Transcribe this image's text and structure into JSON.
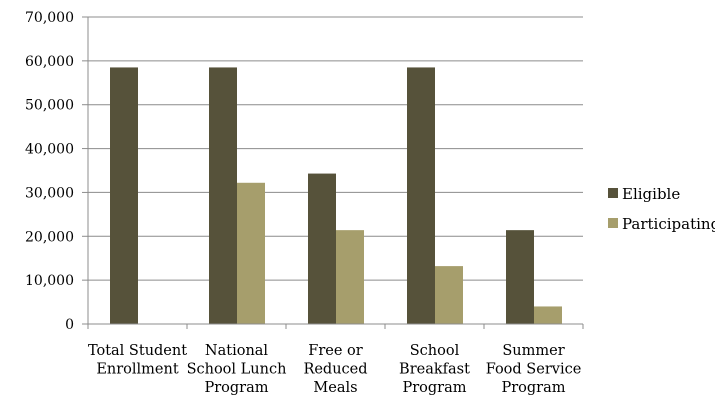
{
  "chart_data": {
    "type": "bar",
    "categories": [
      [
        "Total Student",
        "Enrollment"
      ],
      [
        "National",
        "School Lunch",
        "Program"
      ],
      [
        "Free or",
        "Reduced",
        "Meals"
      ],
      [
        "School",
        "Breakfast",
        "Program"
      ],
      [
        "Summer",
        "Food Service",
        "Program"
      ]
    ],
    "series": [
      {
        "name": "Eligible",
        "values": [
          58500,
          58500,
          34300,
          58500,
          21400
        ]
      },
      {
        "name": "Participating",
        "values": [
          null,
          32200,
          21400,
          13200,
          4000
        ]
      }
    ],
    "ylim": [
      0,
      70000
    ],
    "yticks": [
      "0",
      "10,000",
      "20,000",
      "30,000",
      "40,000",
      "50,000",
      "60,000",
      "70,000"
    ],
    "grid": true,
    "legend_position": "right",
    "title": "",
    "xlabel": "",
    "ylabel": ""
  },
  "colors": {
    "Eligible": "#56523a",
    "Participating": "#a69e6c",
    "grid": "#8c8c8c",
    "axis": "#8c8c8c"
  }
}
